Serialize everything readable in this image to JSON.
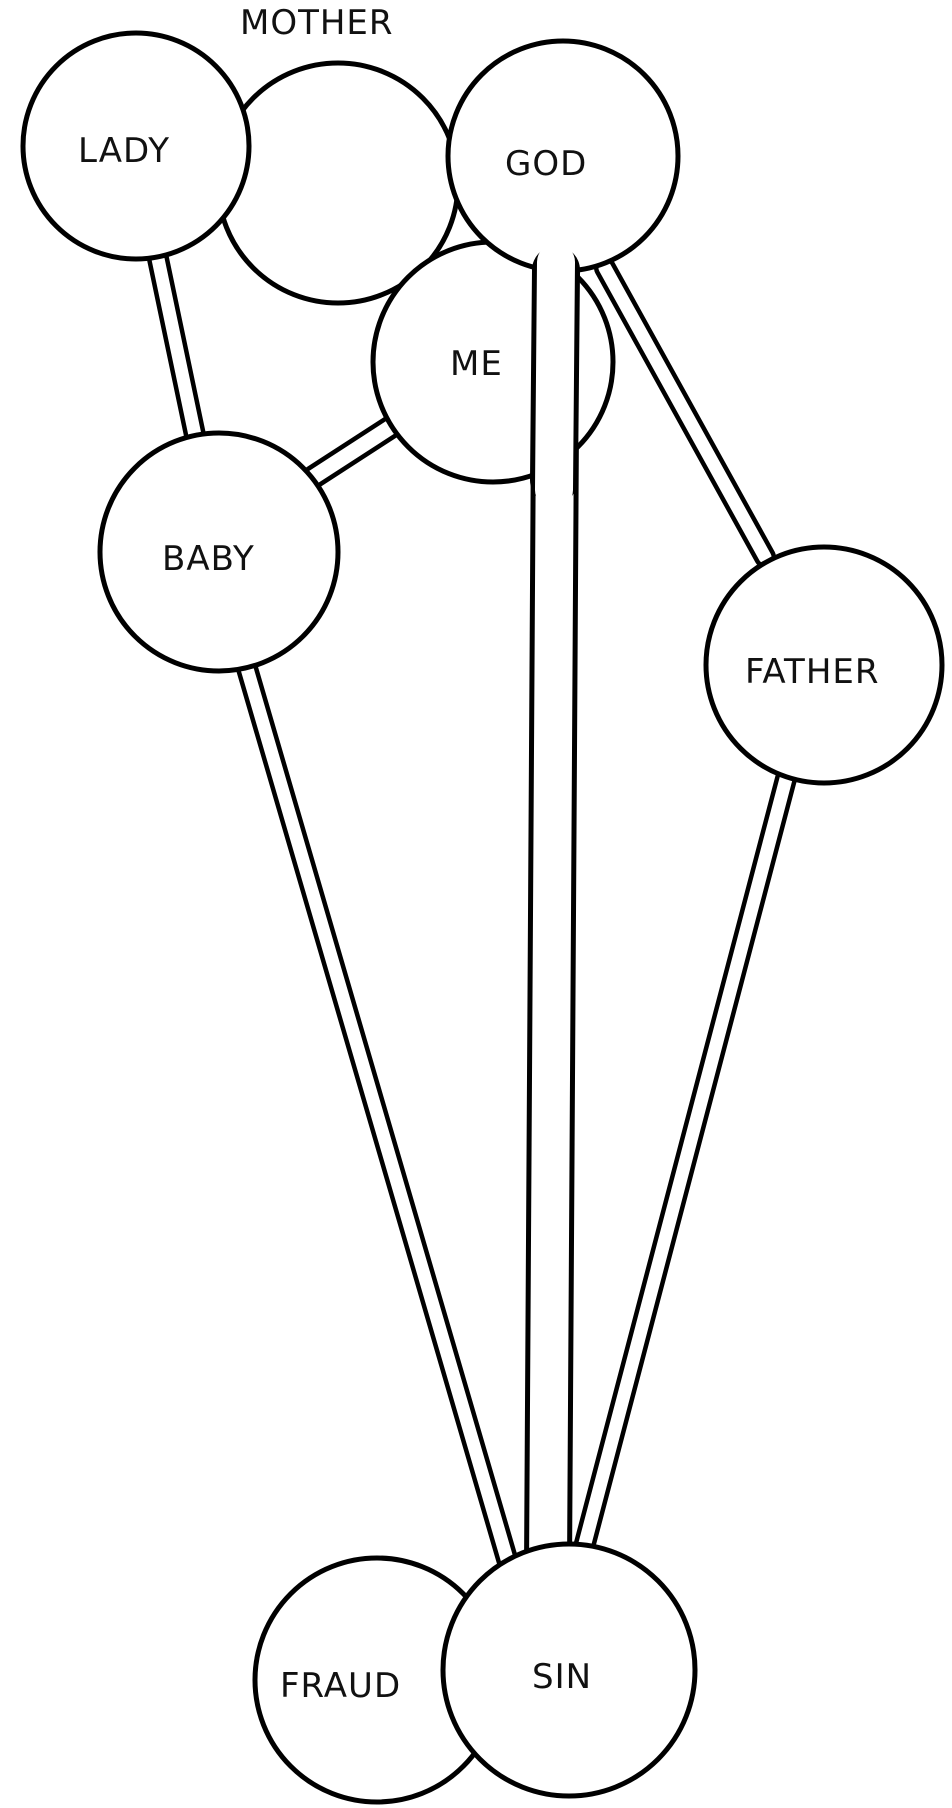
{
  "diagram": {
    "labels": {
      "mother": "MOTHER",
      "lady": "LADY",
      "god": "GOD",
      "me": "ME",
      "baby": "BABY",
      "father": "FATHER",
      "fraud": "FRAUD",
      "sin": "SIN"
    },
    "connections": [
      {
        "from": "lady",
        "to": "god"
      },
      {
        "from": "lady",
        "to": "baby"
      },
      {
        "from": "baby",
        "to": "me"
      },
      {
        "from": "god",
        "to": "sin"
      },
      {
        "from": "god",
        "to": "father"
      },
      {
        "from": "baby",
        "to": "sin"
      },
      {
        "from": "father",
        "to": "sin"
      }
    ],
    "overlaps": [
      {
        "a": "mother",
        "b": "lady"
      },
      {
        "a": "mother",
        "b": "god"
      },
      {
        "a": "me",
        "b": "god"
      },
      {
        "a": "fraud",
        "b": "sin"
      }
    ]
  }
}
